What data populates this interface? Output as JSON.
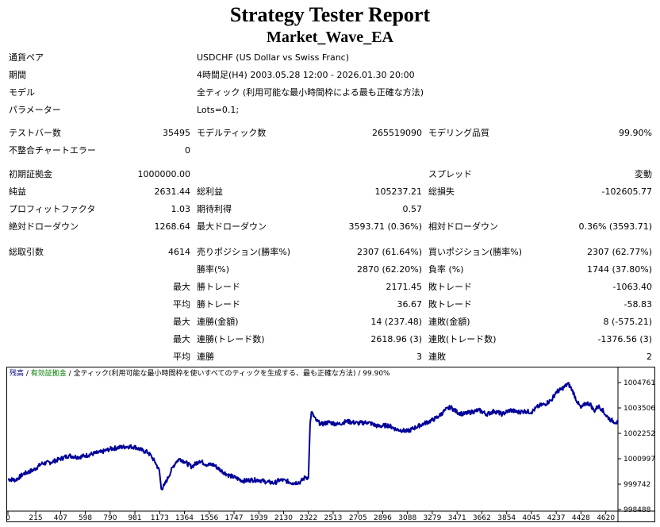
{
  "header": {
    "title": "Strategy Tester Report",
    "subtitle": "Market_Wave_EA"
  },
  "info": [
    {
      "label": "通貨ペア",
      "value": "USDCHF (US Dollar vs Swiss Franc)"
    },
    {
      "label": "期間",
      "value": "4時間足(H4) 2003.05.28 12:00 - 2026.01.30 20:00"
    },
    {
      "label": "モデル",
      "value": "全ティック (利用可能な最小時間枠による最も正確な方法)"
    },
    {
      "label": "パラメーター",
      "value": "Lots=0.1;"
    }
  ],
  "bars": {
    "test_bars_label": "テストバー数",
    "test_bars": "35495",
    "model_ticks_label": "モデルティック数",
    "model_ticks": "265519090",
    "model_quality_label": "モデリング品質",
    "model_quality": "99.90%",
    "mismatch_label": "不整合チャートエラー",
    "mismatch": "0"
  },
  "stats": {
    "initial_deposit_label": "初期証拠金",
    "initial_deposit": "1000000.00",
    "spread_label": "スプレッド",
    "spread": "変動",
    "net_profit_label": "純益",
    "net_profit": "2631.44",
    "gross_profit_label": "総利益",
    "gross_profit": "105237.21",
    "gross_loss_label": "総損失",
    "gross_loss": "-102605.77",
    "profit_factor_label": "プロフィットファクタ",
    "profit_factor": "1.03",
    "expected_payoff_label": "期待利得",
    "expected_payoff": "0.57",
    "abs_dd_label": "絶対ドローダウン",
    "abs_dd": "1268.64",
    "max_dd_label": "最大ドローダウン",
    "max_dd": "3593.71 (0.36%)",
    "rel_dd_label": "相対ドローダウン",
    "rel_dd": "0.36% (3593.71)"
  },
  "trades": {
    "total_label": "総取引数",
    "total": "4614",
    "short_label": "売りポジション(勝率%)",
    "short": "2307 (61.64%)",
    "long_label": "買いポジション(勝率%)",
    "long": "2307 (62.77%)",
    "win_pct_label": "勝率(%)",
    "win_pct": "2870 (62.20%)",
    "loss_pct_label": "負率 (%)",
    "loss_pct": "1744 (37.80%)",
    "rows": [
      {
        "prefix": "最大",
        "a_label": "勝トレード",
        "a": "2171.45",
        "b_label": "敗トレード",
        "b": "-1063.40"
      },
      {
        "prefix": "平均",
        "a_label": "勝トレード",
        "a": "36.67",
        "b_label": "敗トレード",
        "b": "-58.83"
      },
      {
        "prefix": "最大",
        "a_label": "連勝(金額)",
        "a": "14 (237.48)",
        "b_label": "連敗(金額)",
        "b": "8 (-575.21)"
      },
      {
        "prefix": "最大",
        "a_label": "連勝(トレード数)",
        "a": "2618.96 (3)",
        "b_label": "連敗(トレード数)",
        "b": "-1376.56 (3)"
      },
      {
        "prefix": "平均",
        "a_label": "連勝",
        "a": "3",
        "b_label": "連敗",
        "b": "2"
      }
    ]
  },
  "chart_data": {
    "type": "line",
    "legend": {
      "balance": "残高",
      "margin": "有効証拠金",
      "model": "全ティック(利用可能な最小時間枠を使いすべてのティックを生成する、最も正確な方法)",
      "quality": "99.90%"
    },
    "y_ticks": [
      1004761,
      1003506,
      1002252,
      1000997,
      999742,
      998488
    ],
    "x_ticks": [
      0,
      215,
      407,
      598,
      790,
      981,
      1173,
      1364,
      1556,
      1747,
      1939,
      2130,
      2322,
      2513,
      2705,
      2896,
      3088,
      3279,
      3471,
      3662,
      3854,
      4045,
      4237,
      4428,
      4620
    ],
    "ylim": [
      998488,
      1004761
    ],
    "xlim": [
      0,
      4714
    ],
    "line_color": "#000099",
    "series": [
      {
        "x": [
          0,
          60,
          120,
          200,
          260,
          330,
          400,
          470,
          540,
          600,
          660,
          720,
          790,
          850,
          920,
          981,
          1040,
          1080,
          1110,
          1140,
          1170,
          1185,
          1210,
          1240,
          1275,
          1300,
          1330,
          1364,
          1420,
          1480,
          1540,
          1590,
          1650,
          1700,
          1760,
          1820,
          1880,
          1939,
          2000,
          2060,
          2100,
          2150,
          2200,
          2260,
          2300,
          2322,
          2335,
          2345,
          2380,
          2420,
          2480,
          2550,
          2620,
          2705,
          2780,
          2860,
          2940,
          3000,
          3050,
          3088,
          3150,
          3220,
          3279,
          3330,
          3380,
          3420,
          3471,
          3520,
          3580,
          3640,
          3700,
          3760,
          3820,
          3880,
          3940,
          4000,
          4045,
          4100,
          4150,
          4200,
          4237,
          4270,
          4300,
          4330,
          4360,
          4400,
          4428,
          4470,
          4500,
          4530,
          4560,
          4590,
          4620,
          4660,
          4700,
          4714
        ],
        "y": [
          999990,
          999950,
          1000250,
          1000450,
          1000750,
          1000820,
          1000980,
          1001150,
          1001080,
          1001150,
          1001250,
          1001320,
          1001480,
          1001550,
          1001600,
          1001580,
          1001400,
          1001320,
          1001100,
          1000800,
          1000400,
          999500,
          999700,
          1000100,
          1000600,
          1000850,
          1001000,
          1000850,
          1000600,
          1000900,
          1000700,
          1000700,
          1000400,
          1000200,
          1000050,
          999900,
          999950,
          999950,
          999850,
          999800,
          999950,
          999900,
          999800,
          999850,
          1000100,
          1000050,
          1002700,
          1003300,
          1002900,
          1002700,
          1002800,
          1002700,
          1002850,
          1002750,
          1002800,
          1002600,
          1002650,
          1002450,
          1002400,
          1002350,
          1002550,
          1002750,
          1002900,
          1003100,
          1003400,
          1003550,
          1003300,
          1003200,
          1003300,
          1003400,
          1003200,
          1003350,
          1003200,
          1003400,
          1003300,
          1003350,
          1003300,
          1003600,
          1003700,
          1003900,
          1004300,
          1004400,
          1004550,
          1004700,
          1004400,
          1003800,
          1003500,
          1003750,
          1003700,
          1003350,
          1003600,
          1003450,
          1003150,
          1002900,
          1002800,
          1002800
        ]
      }
    ]
  }
}
